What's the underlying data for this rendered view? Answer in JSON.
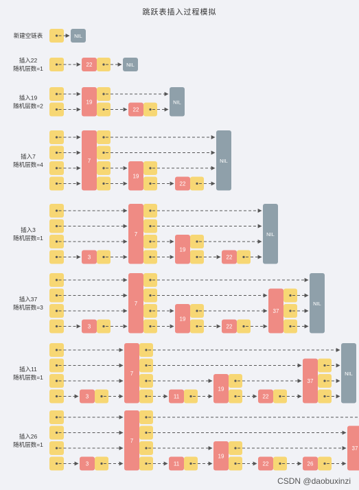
{
  "title": "跳跃表插入过程模拟",
  "watermark": "CSDN @daobuxinzi",
  "nil_label": "NIL",
  "colors": {
    "pointer_cell": "#f7d774",
    "key_cell": "#ef8b84",
    "nil_cell": "#8fa0aa",
    "arrow": "#555555",
    "background": "#f1f2f6"
  },
  "steps": [
    {
      "caption": [
        "新建空链表"
      ],
      "levels": 1,
      "nodes": []
    },
    {
      "caption": [
        "插入22",
        "随机层数=1"
      ],
      "levels": 1,
      "nodes": [
        {
          "key": "22",
          "height": 1
        }
      ]
    },
    {
      "caption": [
        "插入19",
        "随机层数=2"
      ],
      "levels": 2,
      "nodes": [
        {
          "key": "19",
          "height": 2
        },
        {
          "key": "22",
          "height": 1
        }
      ]
    },
    {
      "caption": [
        "插入7",
        "随机层数=4"
      ],
      "levels": 4,
      "nodes": [
        {
          "key": "7",
          "height": 4
        },
        {
          "key": "19",
          "height": 2
        },
        {
          "key": "22",
          "height": 1
        }
      ]
    },
    {
      "caption": [
        "插入3",
        "随机层数=1"
      ],
      "levels": 4,
      "nodes": [
        {
          "key": "3",
          "height": 1
        },
        {
          "key": "7",
          "height": 4
        },
        {
          "key": "19",
          "height": 2
        },
        {
          "key": "22",
          "height": 1
        }
      ]
    },
    {
      "caption": [
        "插入37",
        "随机层数=3"
      ],
      "levels": 4,
      "nodes": [
        {
          "key": "3",
          "height": 1
        },
        {
          "key": "7",
          "height": 4
        },
        {
          "key": "19",
          "height": 2
        },
        {
          "key": "22",
          "height": 1
        },
        {
          "key": "37",
          "height": 3
        }
      ]
    },
    {
      "caption": [
        "插入11",
        "随机层数=1"
      ],
      "levels": 4,
      "nodes": [
        {
          "key": "3",
          "height": 1
        },
        {
          "key": "7",
          "height": 4
        },
        {
          "key": "11",
          "height": 1
        },
        {
          "key": "19",
          "height": 2
        },
        {
          "key": "22",
          "height": 1
        },
        {
          "key": "37",
          "height": 3
        }
      ]
    },
    {
      "caption": [
        "插入26",
        "随机层数=1"
      ],
      "levels": 4,
      "nodes": [
        {
          "key": "3",
          "height": 1
        },
        {
          "key": "7",
          "height": 4
        },
        {
          "key": "11",
          "height": 1
        },
        {
          "key": "19",
          "height": 2
        },
        {
          "key": "22",
          "height": 1
        },
        {
          "key": "26",
          "height": 1
        },
        {
          "key": "37",
          "height": 3
        }
      ]
    }
  ]
}
